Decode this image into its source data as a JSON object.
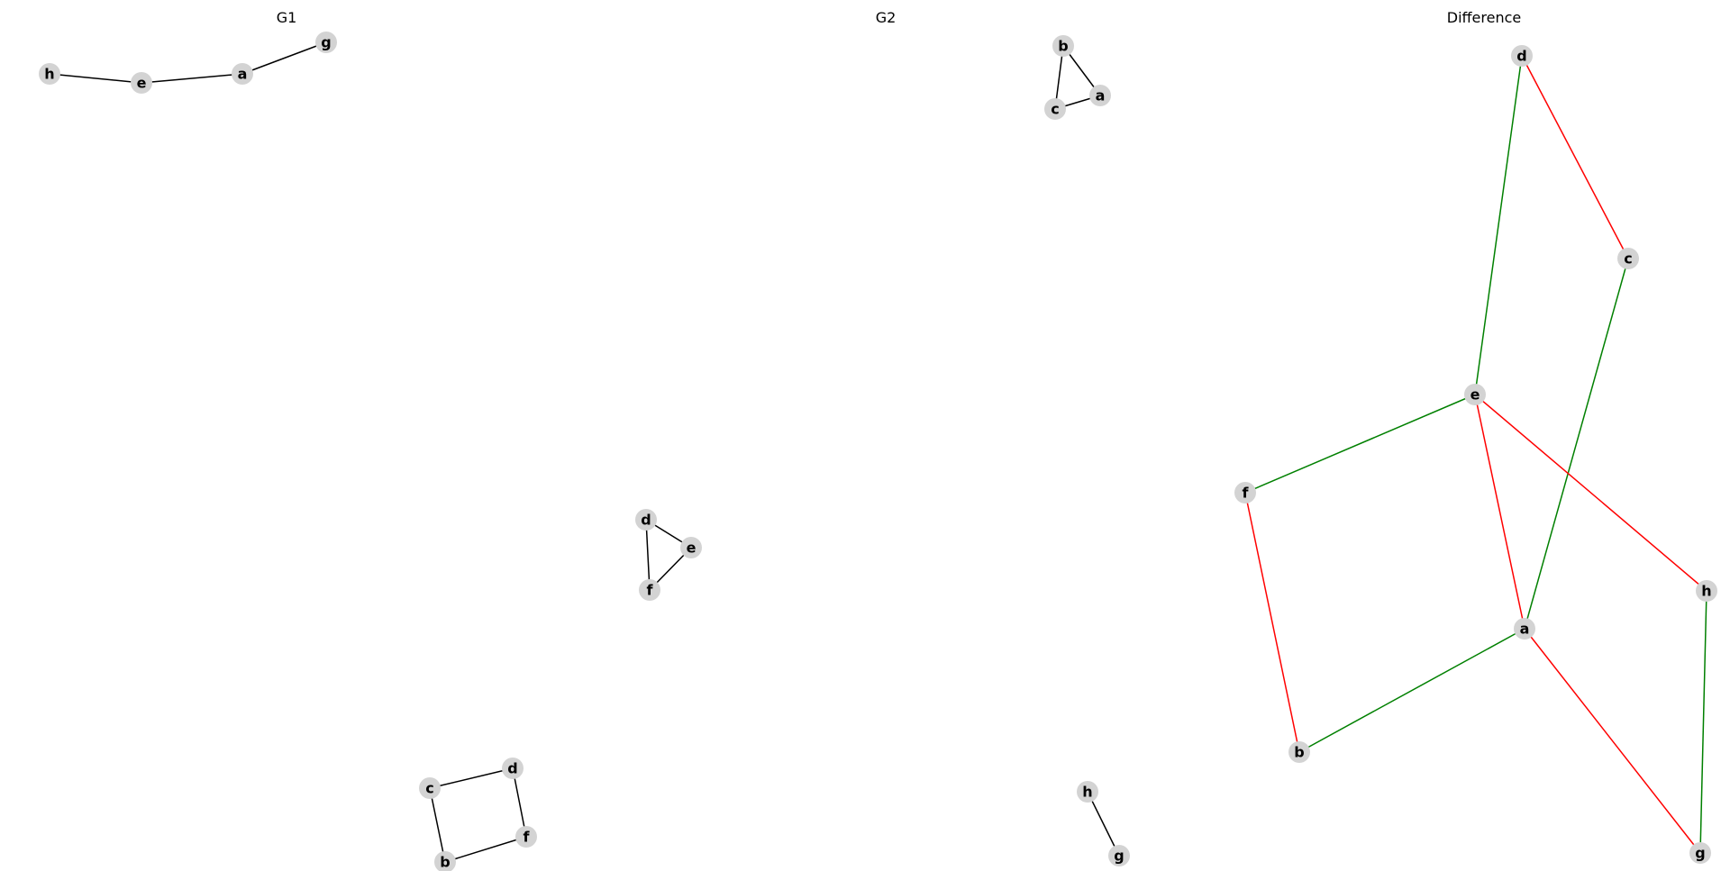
{
  "panels": [
    {
      "id": "g1",
      "title": "G1",
      "nodes": [
        "h",
        "e",
        "a",
        "g",
        "d",
        "f",
        "c",
        "b"
      ],
      "edges": [
        {
          "source": "h",
          "target": "e",
          "kind": "plain"
        },
        {
          "source": "e",
          "target": "a",
          "kind": "plain"
        },
        {
          "source": "a",
          "target": "g",
          "kind": "plain"
        },
        {
          "source": "d",
          "target": "e",
          "kind": "plain"
        },
        {
          "source": "d",
          "target": "f",
          "kind": "plain"
        },
        {
          "source": "e",
          "target": "f",
          "kind": "plain"
        },
        {
          "source": "c",
          "target": "d",
          "kind": "plain"
        },
        {
          "source": "c",
          "target": "b",
          "kind": "plain"
        },
        {
          "source": "d",
          "target": "f2",
          "kind": "plain"
        },
        {
          "source": "b",
          "target": "f2",
          "kind": "plain"
        }
      ]
    },
    {
      "id": "g2",
      "title": "G2",
      "nodes": [
        "b",
        "a",
        "c",
        "h",
        "g"
      ],
      "edges": [
        {
          "source": "b",
          "target": "a",
          "kind": "plain"
        },
        {
          "source": "b",
          "target": "c",
          "kind": "plain"
        },
        {
          "source": "c",
          "target": "a",
          "kind": "plain"
        },
        {
          "source": "h",
          "target": "g",
          "kind": "plain"
        }
      ]
    },
    {
      "id": "difference",
      "title": "Difference",
      "nodes": [
        "d",
        "c",
        "e",
        "f",
        "h",
        "a",
        "b",
        "g"
      ],
      "edges": [
        {
          "source": "d",
          "target": "e",
          "kind": "added"
        },
        {
          "source": "d",
          "target": "c",
          "kind": "removed"
        },
        {
          "source": "c",
          "target": "a",
          "kind": "added"
        },
        {
          "source": "e",
          "target": "f",
          "kind": "added"
        },
        {
          "source": "e",
          "target": "a",
          "kind": "removed"
        },
        {
          "source": "e",
          "target": "h",
          "kind": "removed"
        },
        {
          "source": "f",
          "target": "b",
          "kind": "removed"
        },
        {
          "source": "b",
          "target": "a",
          "kind": "added"
        },
        {
          "source": "a",
          "target": "g",
          "kind": "removed"
        },
        {
          "source": "h",
          "target": "g",
          "kind": "added"
        }
      ]
    }
  ],
  "colors": {
    "plain": "#000000",
    "added": "#008000",
    "removed": "#ff0000",
    "node_fill": "#d3d3d3"
  }
}
